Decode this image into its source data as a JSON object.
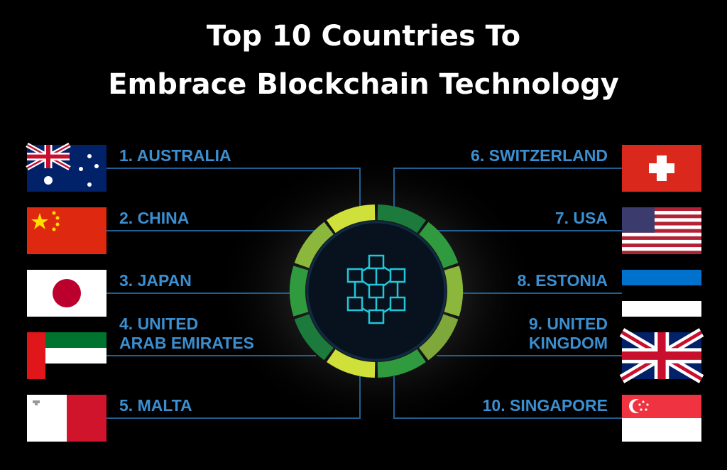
{
  "header": {
    "title_lines": [
      "Top 10 Countries To",
      "Embrace Blockchain Technology"
    ]
  },
  "countries": [
    {
      "lines": [
        "1. AUSTRALIA"
      ]
    },
    {
      "lines": [
        "2. CHINA"
      ]
    },
    {
      "lines": [
        "3. JAPAN"
      ]
    },
    {
      "lines": [
        "4. UNITED",
        "ARAB EMIRATES"
      ]
    },
    {
      "lines": [
        "5. MALTA"
      ]
    },
    {
      "lines": [
        "6. SWITZERLAND"
      ]
    },
    {
      "lines": [
        "7. USA"
      ]
    },
    {
      "lines": [
        "8. ESTONIA"
      ]
    },
    {
      "lines": [
        "9. UNITED",
        "KINGDOM"
      ]
    },
    {
      "lines": [
        "10. SINGAPORE"
      ]
    }
  ]
}
